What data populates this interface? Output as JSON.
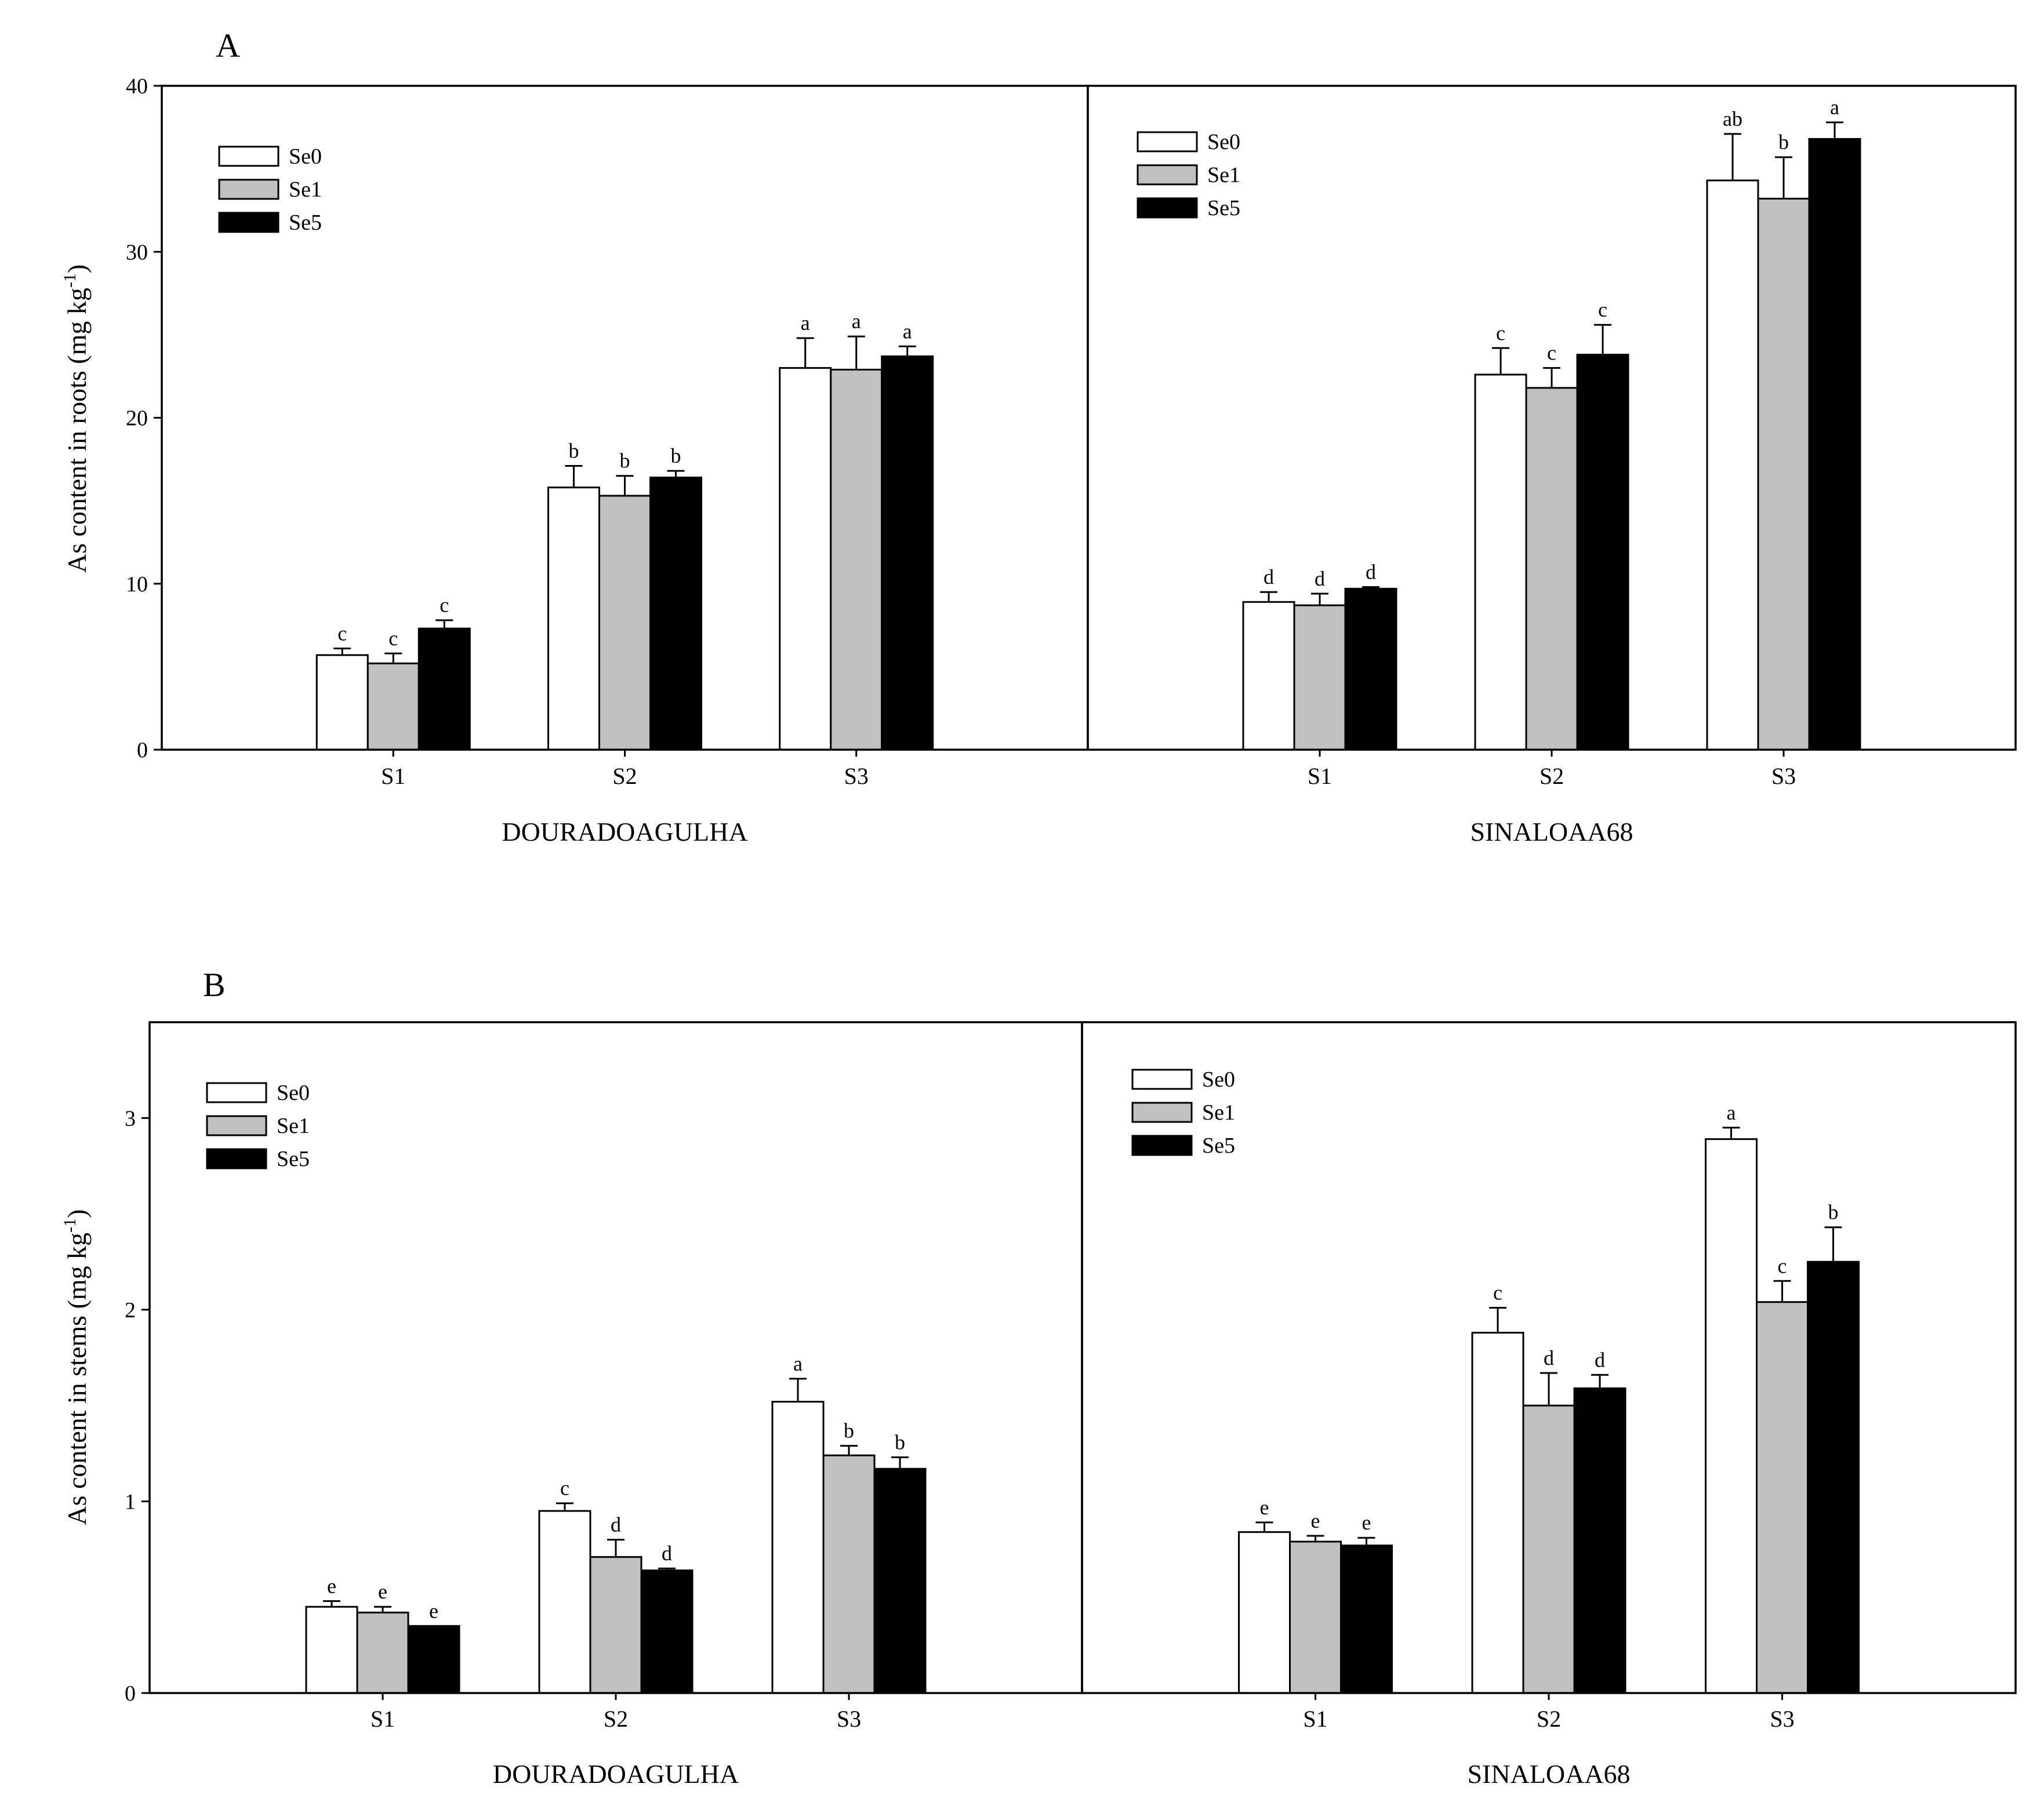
{
  "colors": {
    "Se0": "#ffffff",
    "Se1": "#c0c0c0",
    "Se5": "#000000"
  },
  "chart_data": [
    {
      "type": "bar",
      "panel": "A",
      "ylabel_main": "As content in roots (mg kg",
      "ylabel_sup": "-1",
      "ylabel_end": ")",
      "ylim": [
        0,
        40
      ],
      "yticks": [
        0,
        10,
        20,
        30,
        40
      ],
      "legend": {
        "placement": "top-left",
        "entries": [
          "Se0",
          "Se1",
          "Se5"
        ]
      },
      "groups": [
        {
          "name": "DOURADOAGULHA",
          "categories": [
            "S1",
            "S2",
            "S3"
          ],
          "series": [
            {
              "name": "Se0",
              "values": [
                5.7,
                15.8,
                23.0
              ],
              "errors": [
                0.4,
                1.3,
                1.8
              ],
              "letters": [
                "c",
                "b",
                "a"
              ]
            },
            {
              "name": "Se1",
              "values": [
                5.2,
                15.3,
                22.9
              ],
              "errors": [
                0.6,
                1.2,
                2.0
              ],
              "letters": [
                "c",
                "b",
                "a"
              ]
            },
            {
              "name": "Se5",
              "values": [
                7.3,
                16.4,
                23.7
              ],
              "errors": [
                0.5,
                0.4,
                0.6
              ],
              "letters": [
                "c",
                "b",
                "a"
              ]
            }
          ]
        },
        {
          "name": "SINALOAA68",
          "categories": [
            "S1",
            "S2",
            "S3"
          ],
          "series": [
            {
              "name": "Se0",
              "values": [
                8.9,
                22.6,
                34.3
              ],
              "errors": [
                0.6,
                1.6,
                2.8
              ],
              "letters": [
                "d",
                "c",
                "ab"
              ]
            },
            {
              "name": "Se1",
              "values": [
                8.7,
                21.8,
                33.2
              ],
              "errors": [
                0.7,
                1.2,
                2.5
              ],
              "letters": [
                "d",
                "c",
                "b"
              ]
            },
            {
              "name": "Se5",
              "values": [
                9.7,
                23.8,
                36.8
              ],
              "errors": [
                0.1,
                1.8,
                1.0
              ],
              "letters": [
                "d",
                "c",
                "a"
              ]
            }
          ]
        }
      ]
    },
    {
      "type": "bar",
      "panel": "B",
      "ylabel_main": "As content in stems (mg kg",
      "ylabel_sup": "-1",
      "ylabel_end": ")",
      "ylim": [
        0,
        3.5
      ],
      "yticks": [
        0,
        1,
        2,
        3
      ],
      "legend": {
        "placement": "top-left",
        "entries": [
          "Se0",
          "Se1",
          "Se5"
        ]
      },
      "groups": [
        {
          "name": "DOURADOAGULHA",
          "categories": [
            "S1",
            "S2",
            "S3"
          ],
          "series": [
            {
              "name": "Se0",
              "values": [
                0.45,
                0.95,
                1.52
              ],
              "errors": [
                0.03,
                0.04,
                0.12
              ],
              "letters": [
                "e",
                "c",
                "a"
              ]
            },
            {
              "name": "Se1",
              "values": [
                0.42,
                0.71,
                1.24
              ],
              "errors": [
                0.03,
                0.09,
                0.05
              ],
              "letters": [
                "e",
                "d",
                "b"
              ]
            },
            {
              "name": "Se5",
              "values": [
                0.35,
                0.64,
                1.17
              ],
              "errors": [
                0.0,
                0.01,
                0.06
              ],
              "letters": [
                "e",
                "d",
                "b"
              ]
            }
          ]
        },
        {
          "name": "SINALOAA68",
          "categories": [
            "S1",
            "S2",
            "S3"
          ],
          "series": [
            {
              "name": "Se0",
              "values": [
                0.84,
                1.88,
                2.89
              ],
              "errors": [
                0.05,
                0.13,
                0.06
              ],
              "letters": [
                "e",
                "c",
                "a"
              ]
            },
            {
              "name": "Se1",
              "values": [
                0.79,
                1.5,
                2.04
              ],
              "errors": [
                0.03,
                0.17,
                0.11
              ],
              "letters": [
                "e",
                "d",
                "c"
              ]
            },
            {
              "name": "Se5",
              "values": [
                0.77,
                1.59,
                2.25
              ],
              "errors": [
                0.04,
                0.07,
                0.18
              ],
              "letters": [
                "e",
                "d",
                "b"
              ]
            }
          ]
        }
      ]
    }
  ]
}
